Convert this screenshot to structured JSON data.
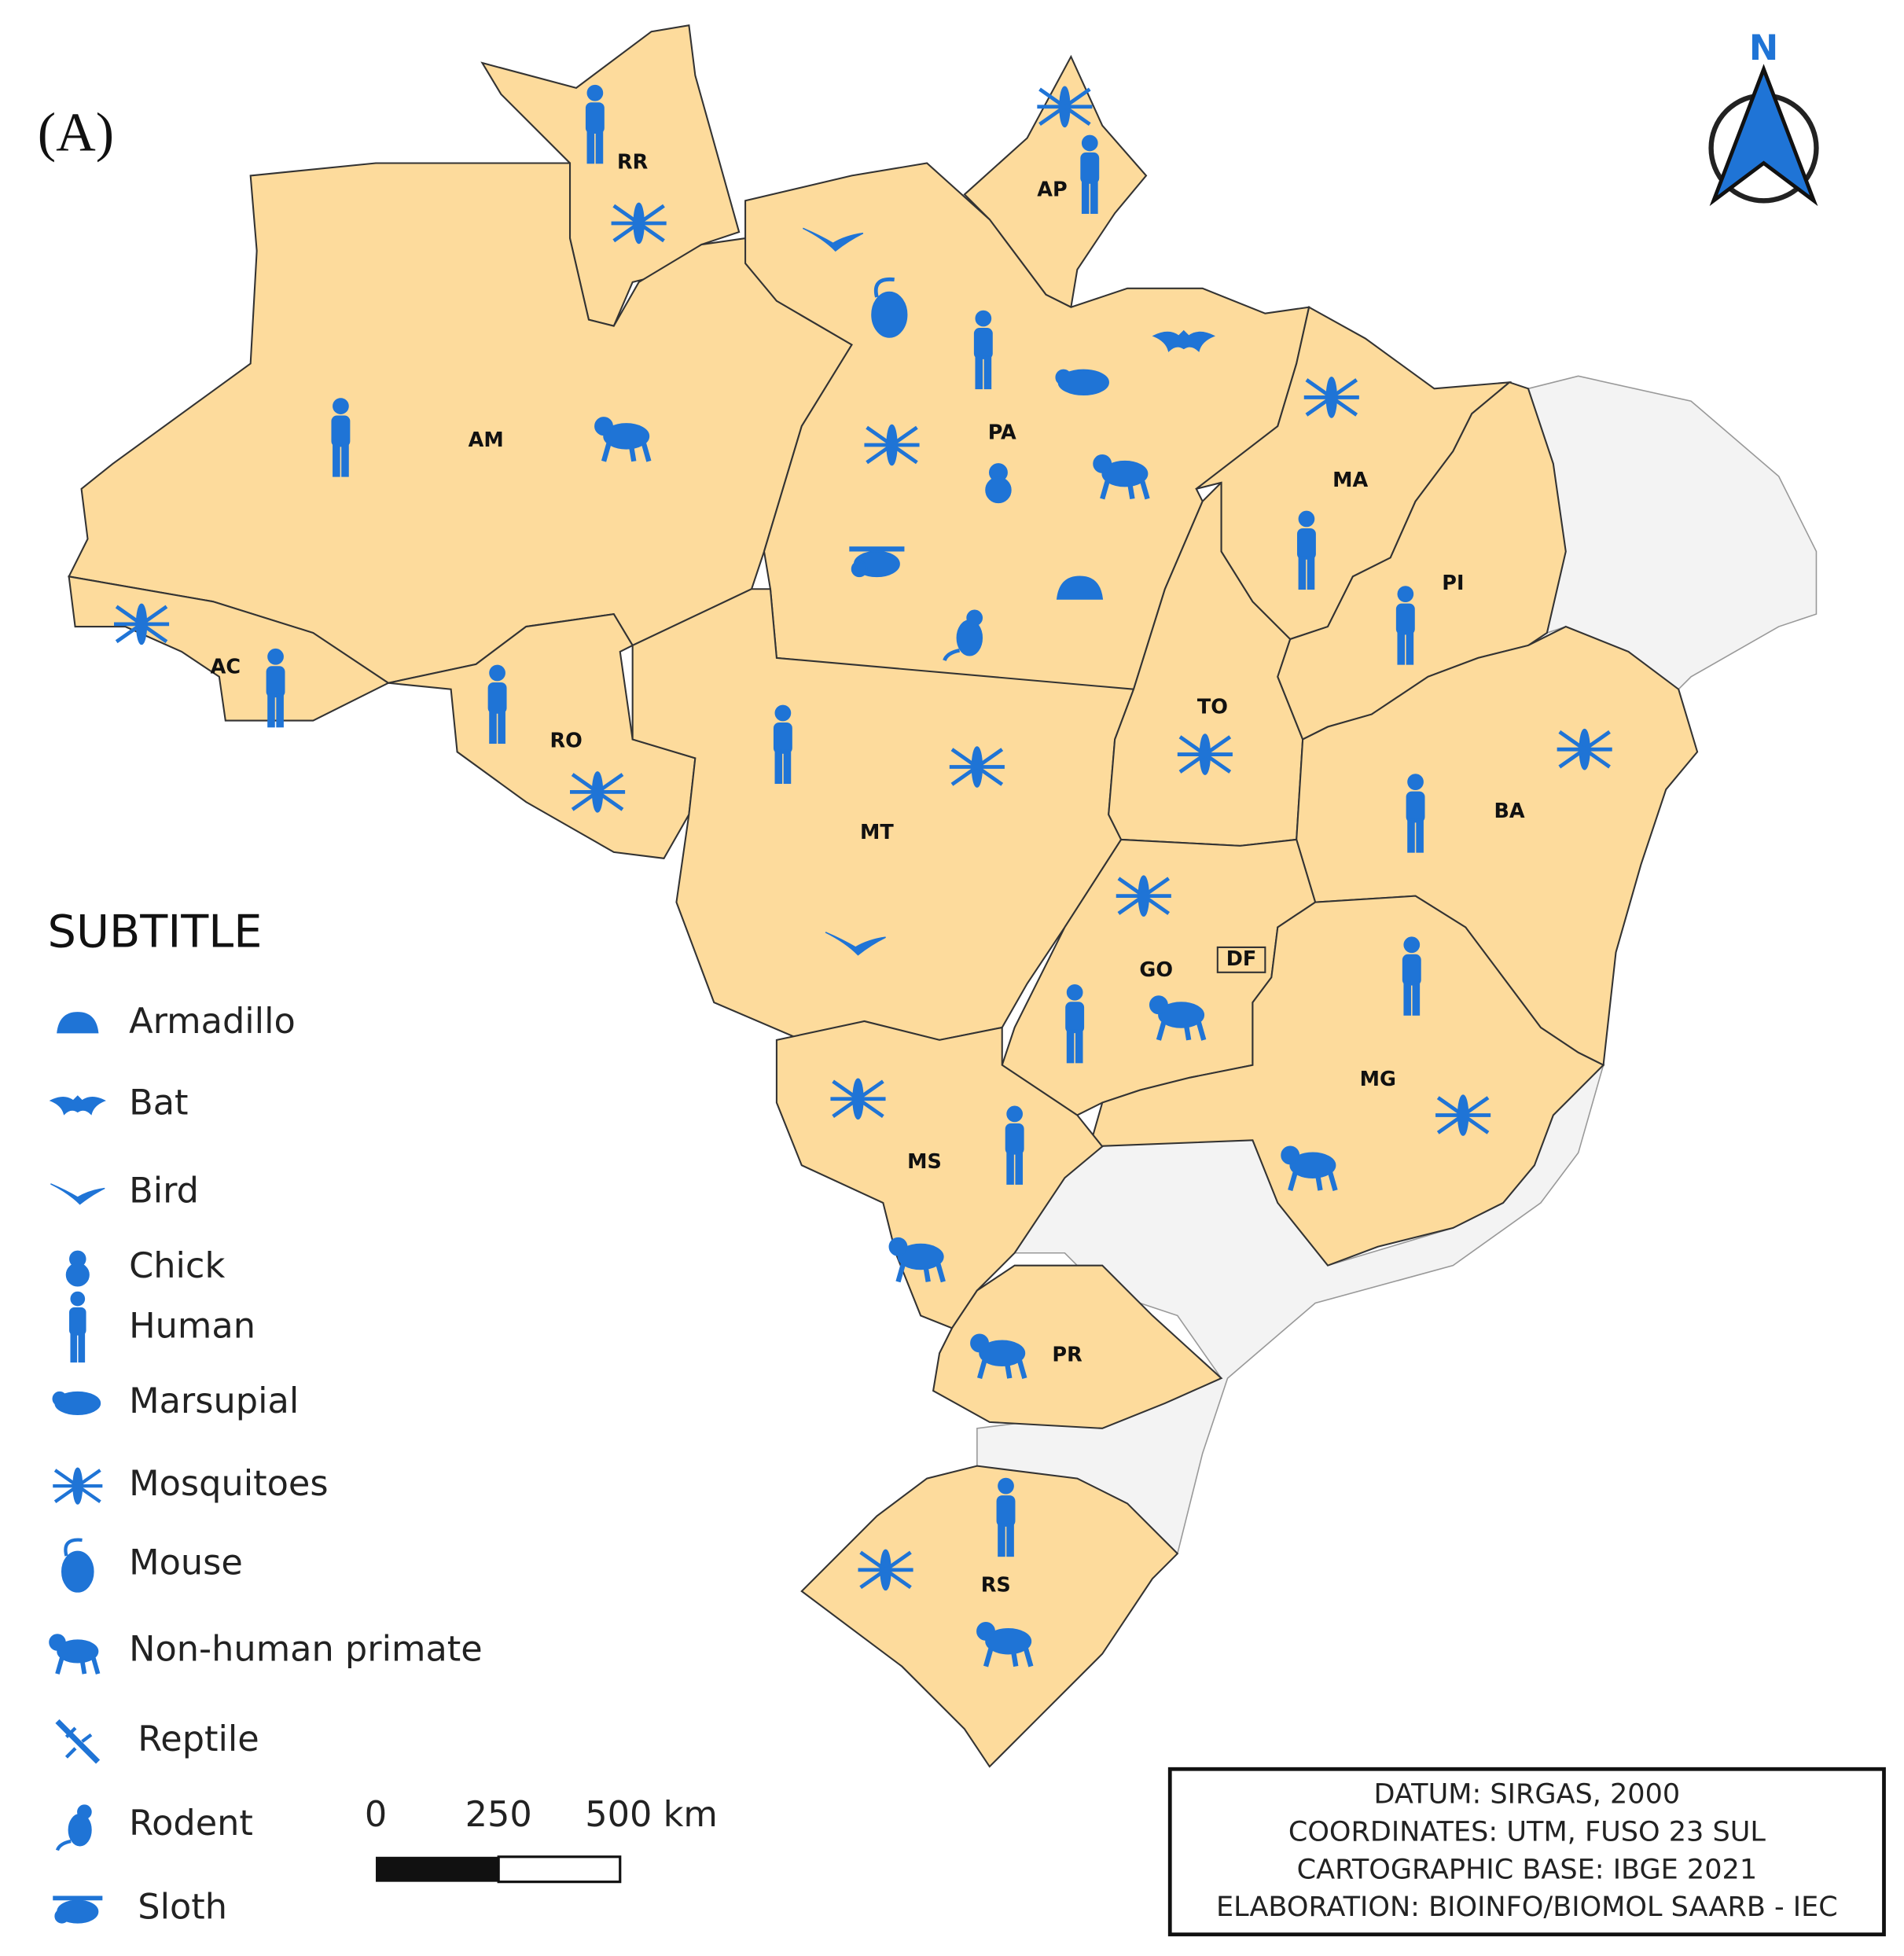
{
  "panel_label": "(A)",
  "north": "N",
  "states": [
    {
      "label": "RR"
    },
    {
      "label": "AP"
    },
    {
      "label": "AM"
    },
    {
      "label": "PA"
    },
    {
      "label": "AC"
    },
    {
      "label": "RO"
    },
    {
      "label": "MT"
    },
    {
      "label": "TO"
    },
    {
      "label": "MA"
    },
    {
      "label": "PI"
    },
    {
      "label": "BA"
    },
    {
      "label": "GO"
    },
    {
      "label": "DF"
    },
    {
      "label": "MG"
    },
    {
      "label": "MS"
    },
    {
      "label": "PR"
    },
    {
      "label": "RS"
    }
  ],
  "legend": {
    "title": "SUBTITLE",
    "items": [
      "Armadillo",
      "Bat",
      "Bird",
      "Chick",
      "Human",
      "Marsupial",
      "Mosquitoes",
      "Mouse",
      "Non-human primate",
      "Reptile",
      "Rodent",
      "Sloth"
    ]
  },
  "scale_bar": {
    "labels": [
      "0",
      "250",
      "500 km"
    ]
  },
  "info_box": {
    "lines": [
      "DATUM: SIRGAS, 2000",
      "COORDINATES: UTM, FUSO 23 SUL",
      "CARTOGRAPHIC BASE: IBGE 2021",
      "ELABORATION: BIOINFO/BIOMOL SAARB - IEC"
    ]
  }
}
